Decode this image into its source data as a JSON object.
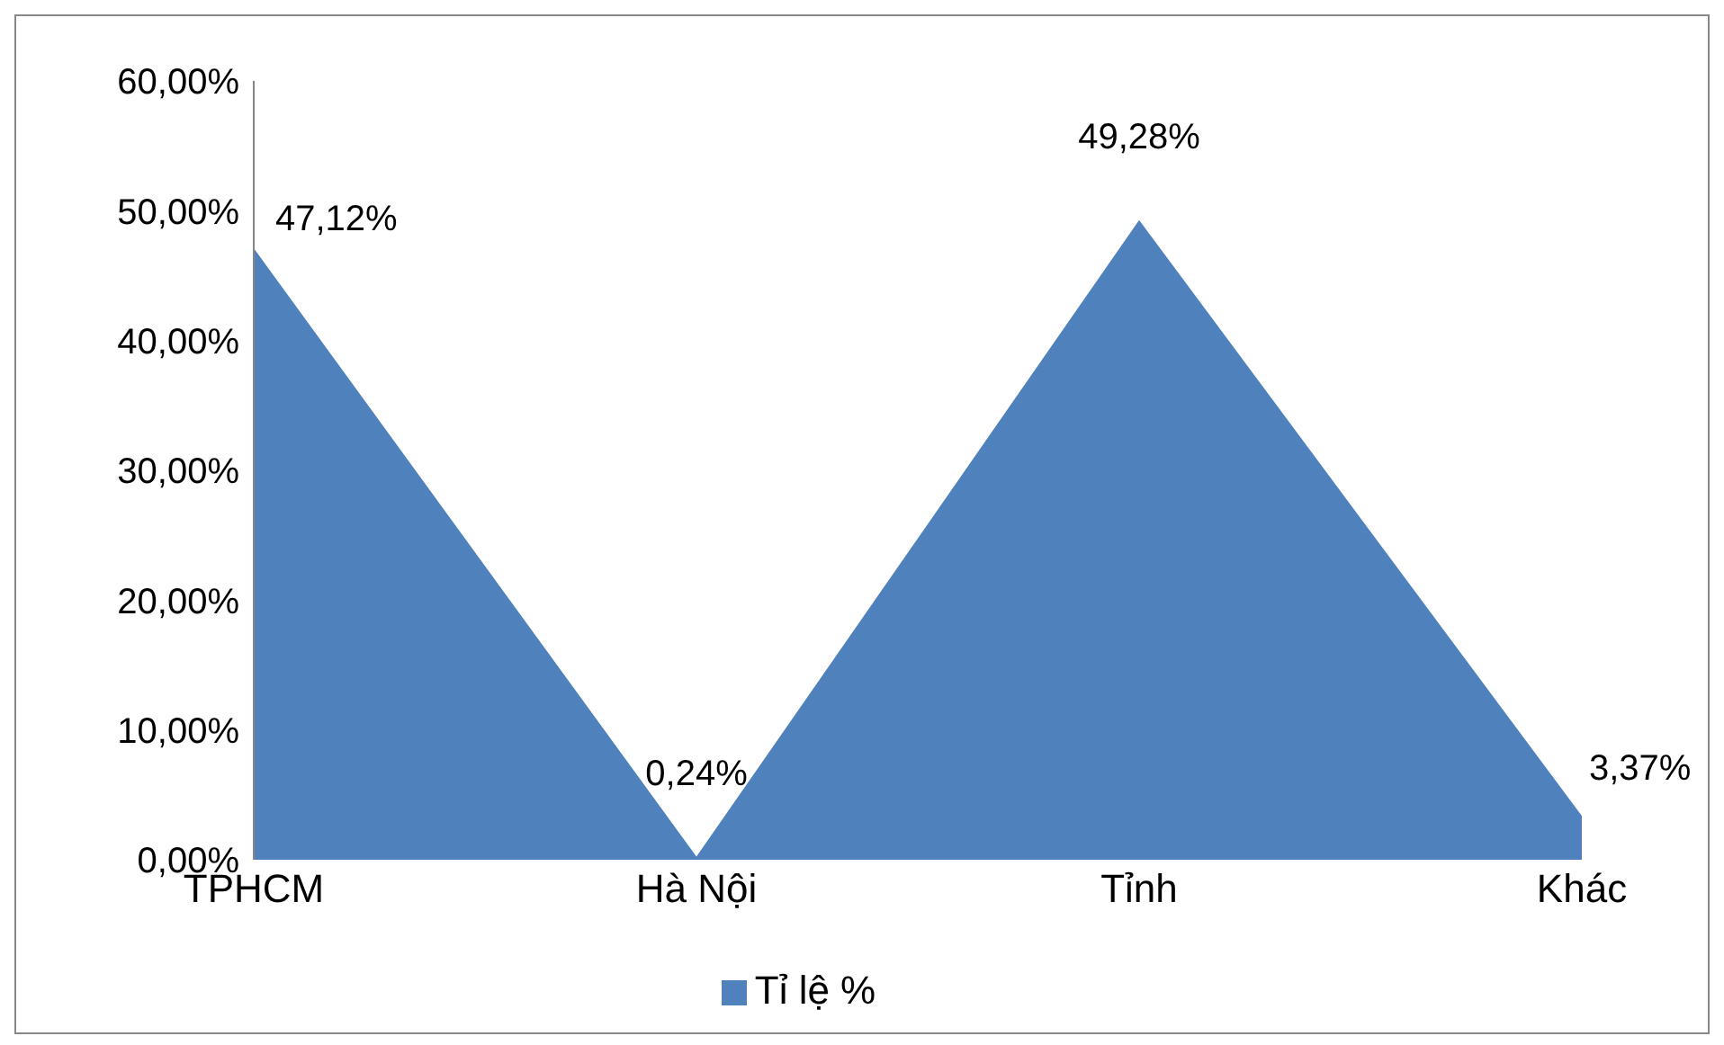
{
  "chart_data": {
    "type": "area",
    "categories": [
      "TPHCM",
      "Hà Nội",
      "Tỉnh",
      "Khác"
    ],
    "series": [
      {
        "name": "Tỉ lệ %",
        "color": "#4f81bd",
        "values": [
          47.12,
          0.24,
          49.28,
          3.37
        ],
        "value_labels": [
          "47,12%",
          "0,24%",
          "49,28%",
          "3,37%"
        ]
      }
    ],
    "ylim": [
      0,
      60
    ],
    "yticks": [
      {
        "value": 0,
        "label": "0,00%"
      },
      {
        "value": 10,
        "label": "10,00%"
      },
      {
        "value": 20,
        "label": "20,00%"
      },
      {
        "value": 30,
        "label": "30,00%"
      },
      {
        "value": 40,
        "label": "40,00%"
      },
      {
        "value": 50,
        "label": "50,00%"
      },
      {
        "value": 60,
        "label": "60,00%"
      }
    ],
    "grid": false,
    "legend": "bottom"
  }
}
